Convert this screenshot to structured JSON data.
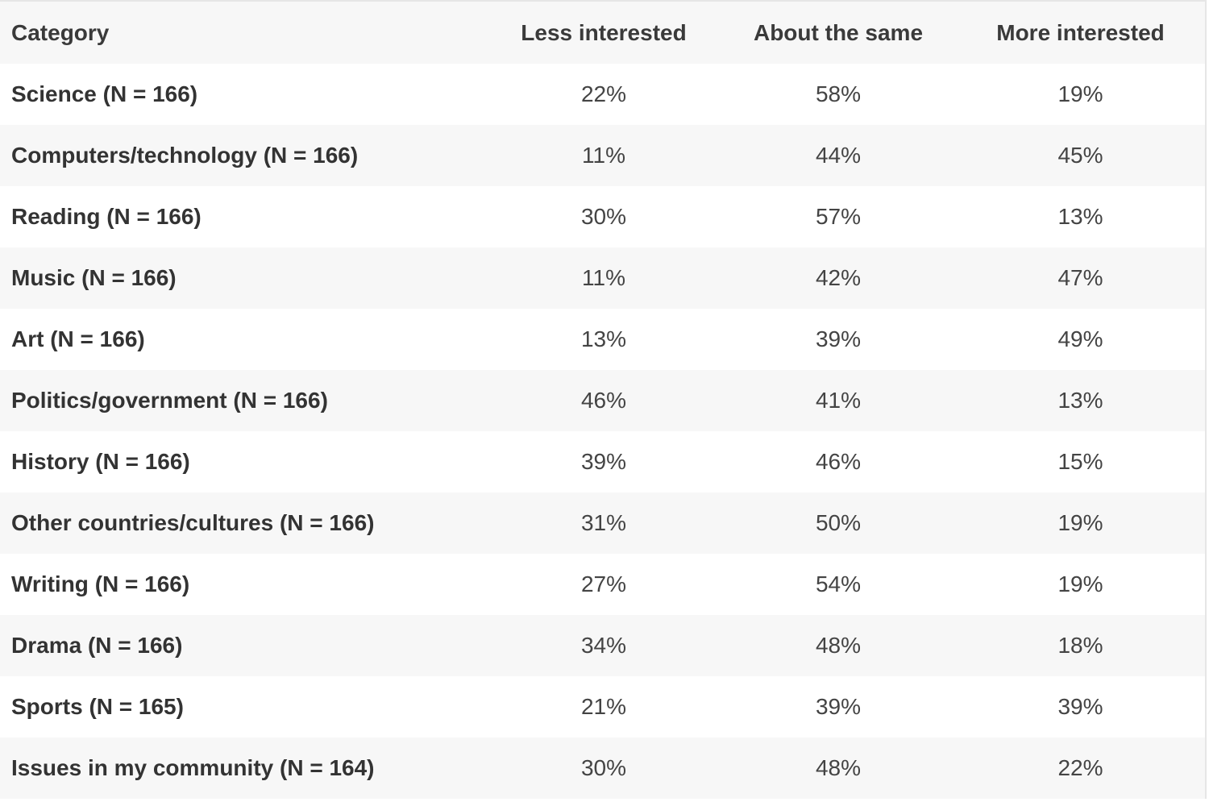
{
  "table": {
    "headers": {
      "category": "Category",
      "less": "Less interested",
      "same": "About the same",
      "more": "More interested"
    },
    "rows": [
      {
        "category": "Science (N = 166)",
        "less": "22%",
        "same": "58%",
        "more": "19%"
      },
      {
        "category": "Computers/technology (N = 166)",
        "less": "11%",
        "same": "44%",
        "more": "45%"
      },
      {
        "category": "Reading (N = 166)",
        "less": "30%",
        "same": "57%",
        "more": "13%"
      },
      {
        "category": "Music (N = 166)",
        "less": "11%",
        "same": "42%",
        "more": "47%"
      },
      {
        "category": "Art (N = 166)",
        "less": "13%",
        "same": "39%",
        "more": "49%"
      },
      {
        "category": "Politics/government (N = 166)",
        "less": "46%",
        "same": "41%",
        "more": "13%"
      },
      {
        "category": "History (N = 166)",
        "less": "39%",
        "same": "46%",
        "more": "15%"
      },
      {
        "category": "Other countries/cultures (N = 166)",
        "less": "31%",
        "same": "50%",
        "more": "19%"
      },
      {
        "category": "Writing (N = 166)",
        "less": "27%",
        "same": "54%",
        "more": "19%"
      },
      {
        "category": "Drama (N = 166)",
        "less": "34%",
        "same": "48%",
        "more": "18%"
      },
      {
        "category": "Sports (N = 165)",
        "less": "21%",
        "same": "39%",
        "more": "39%"
      },
      {
        "category": "Issues in my community (N = 164)",
        "less": "30%",
        "same": "48%",
        "more": "22%"
      }
    ]
  }
}
